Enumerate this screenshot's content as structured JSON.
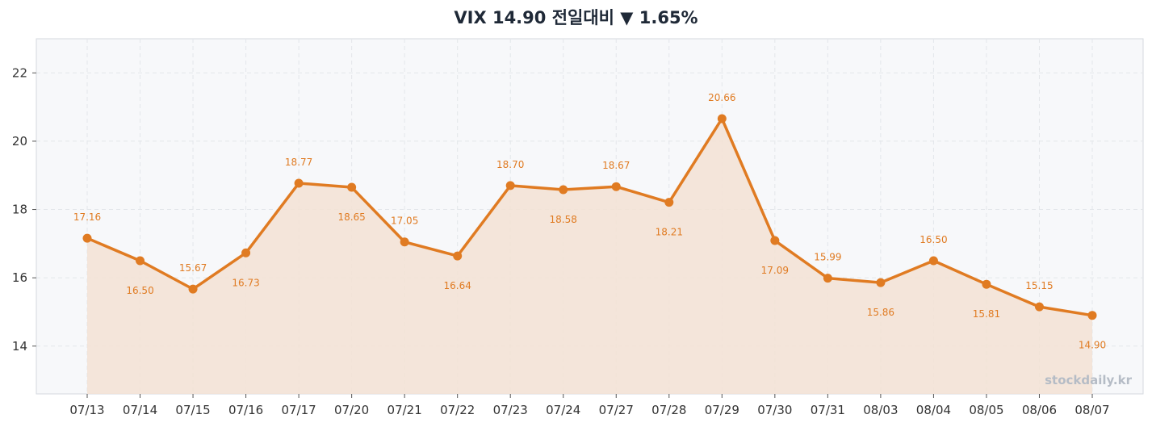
{
  "title": "VIX  14.90  전일대비 ▼ 1.65%",
  "watermark": "stockdaily.kr",
  "colors": {
    "line": "#e07b22",
    "fill": "#f3e2d3",
    "plot_bg": "#f7f8fa",
    "grid": "#e3e6ea"
  },
  "chart_data": {
    "type": "line",
    "categories": [
      "07/13",
      "07/14",
      "07/15",
      "07/16",
      "07/17",
      "07/20",
      "07/21",
      "07/22",
      "07/23",
      "07/24",
      "07/27",
      "07/28",
      "07/29",
      "07/30",
      "07/31",
      "08/03",
      "08/04",
      "08/05",
      "08/06",
      "08/07"
    ],
    "values": [
      17.16,
      16.5,
      15.67,
      16.73,
      18.77,
      18.65,
      17.05,
      16.64,
      18.7,
      18.58,
      18.67,
      18.21,
      20.66,
      17.09,
      15.99,
      15.86,
      16.5,
      15.81,
      15.15,
      14.9
    ],
    "labels": [
      "17.16",
      "16.50",
      "15.67",
      "16.73",
      "18.77",
      "18.65",
      "17.05",
      "16.64",
      "18.70",
      "18.58",
      "18.67",
      "18.21",
      "20.66",
      "17.09",
      "15.99",
      "15.86",
      "16.50",
      "15.81",
      "15.15",
      "14.90"
    ],
    "label_positions": [
      "above",
      "below",
      "above",
      "below",
      "above",
      "below",
      "above",
      "below",
      "above",
      "below",
      "above",
      "below",
      "above",
      "below",
      "above",
      "below",
      "above",
      "below",
      "above",
      "below"
    ],
    "yticks": [
      "14",
      "16",
      "18",
      "20",
      "22"
    ],
    "ylim": [
      12.6,
      23.0
    ],
    "grid": true,
    "area_fill": true
  }
}
